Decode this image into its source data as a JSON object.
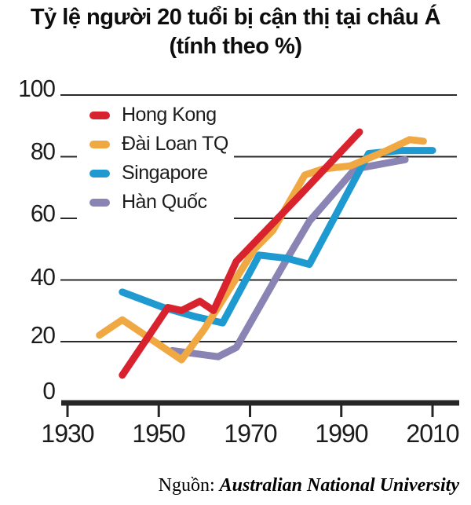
{
  "title": {
    "line1": "Tỷ lệ người 20 tuổi bị cận thị tại châu Á",
    "line2": "(tính theo %)"
  },
  "footer": {
    "source_label": "Nguồn:",
    "source_name": "Australian National University"
  },
  "chart_data": {
    "type": "line",
    "title": "Tỷ lệ người 20 tuổi bị cận thị tại châu Á (tính theo %)",
    "xlabel": "",
    "ylabel": "",
    "unit": "%",
    "xlim": [
      1930,
      2012
    ],
    "ylim": [
      0,
      100
    ],
    "grid": "horizontal",
    "legend_position": "top-left-inside",
    "x_ticks": [
      1930,
      1950,
      1970,
      1990,
      2010
    ],
    "y_ticks_top_to_bottom": [
      100,
      80,
      60,
      40,
      20,
      0
    ],
    "series": [
      {
        "name": "Hong Kong",
        "color": "#d8232f",
        "points": [
          [
            1942,
            9
          ],
          [
            1952,
            31
          ],
          [
            1955,
            30
          ],
          [
            1959,
            33
          ],
          [
            1962,
            30
          ],
          [
            1967,
            46
          ],
          [
            1980,
            66
          ],
          [
            1994,
            88
          ]
        ]
      },
      {
        "name": "Đài Loan TQ",
        "color": "#f0a843",
        "points": [
          [
            1937,
            22
          ],
          [
            1942,
            27
          ],
          [
            1955,
            14
          ],
          [
            1960,
            24
          ],
          [
            1971,
            50
          ],
          [
            1975,
            56
          ],
          [
            1982,
            74
          ],
          [
            1986,
            76
          ],
          [
            1992,
            77
          ],
          [
            2000,
            82
          ],
          [
            2005,
            85.5
          ],
          [
            2008,
            85
          ]
        ]
      },
      {
        "name": "Singapore",
        "color": "#1f9ad0",
        "points": [
          [
            1942,
            36
          ],
          [
            1951,
            31
          ],
          [
            1958,
            28
          ],
          [
            1964,
            26
          ],
          [
            1972,
            48
          ],
          [
            1978,
            47
          ],
          [
            1983,
            45
          ],
          [
            1996,
            81
          ],
          [
            2003,
            82
          ],
          [
            2010,
            82
          ]
        ]
      },
      {
        "name": "Hàn Quốc",
        "color": "#8a84b5",
        "points": [
          [
            1953,
            17
          ],
          [
            1963,
            15
          ],
          [
            1967,
            18
          ],
          [
            1977,
            44
          ],
          [
            1983,
            59
          ],
          [
            1993,
            76
          ],
          [
            2004,
            79
          ]
        ]
      }
    ]
  }
}
